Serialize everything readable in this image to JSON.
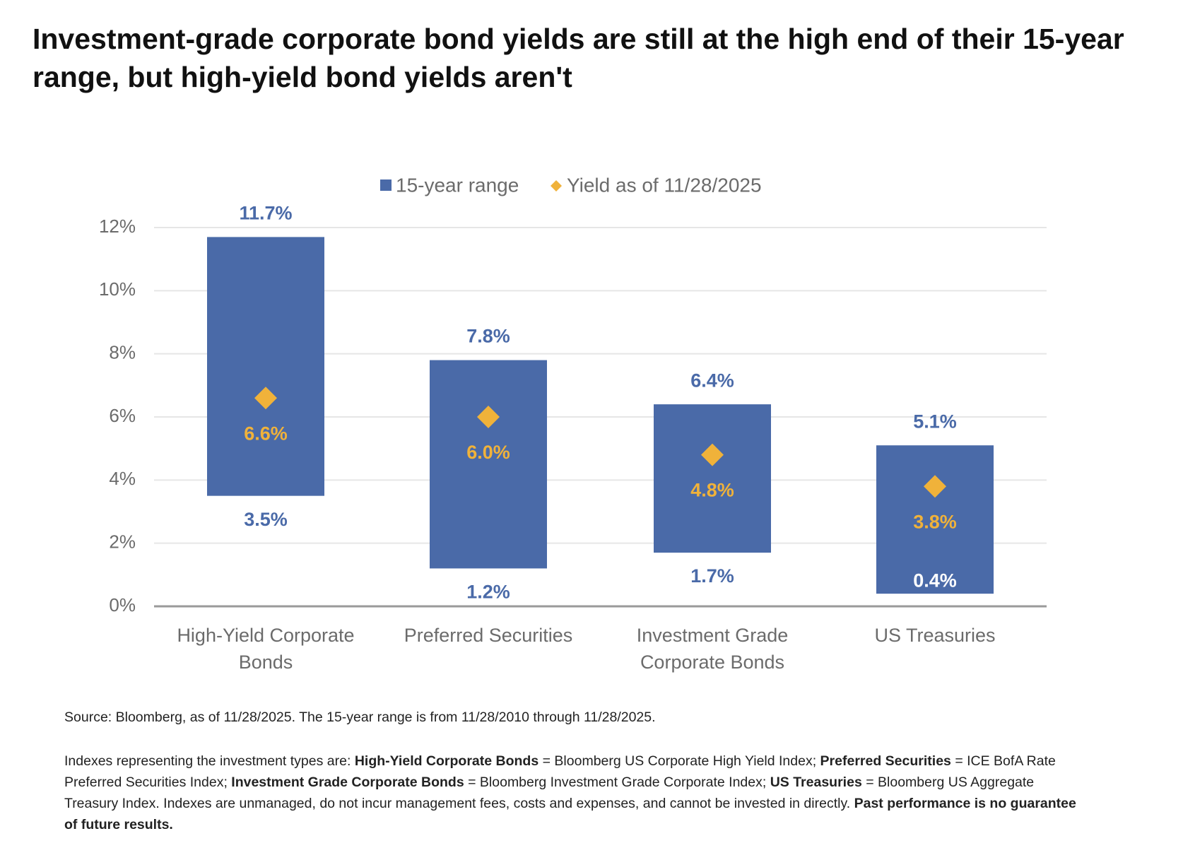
{
  "chart_data": {
    "type": "range",
    "title": "Investment-grade corporate bond yields are still at the high end of their 15-year range, but high-yield bond yields aren't",
    "categories": [
      "High-Yield Corporate Bonds",
      "Preferred Securities",
      "Investment Grade Corporate Bonds",
      "US Treasuries"
    ],
    "series": [
      {
        "name": "15-year range",
        "color": "#4a6aa8",
        "low": [
          3.5,
          1.2,
          1.7,
          0.4
        ],
        "high": [
          11.7,
          7.8,
          6.4,
          5.1
        ],
        "low_labels": [
          "3.5%",
          "1.2%",
          "1.7%",
          "0.4%"
        ],
        "high_labels": [
          "11.7%",
          "7.8%",
          "6.4%",
          "5.1%"
        ]
      },
      {
        "name": "Yield as of 11/28/2025",
        "color": "#f0b23a",
        "values": [
          6.6,
          6.0,
          4.8,
          3.8
        ],
        "value_labels": [
          "6.6%",
          "6.0%",
          "4.8%",
          "3.8%"
        ]
      }
    ],
    "ylim": [
      0,
      12
    ],
    "yticks": [
      {
        "value": 0,
        "label": "0%"
      },
      {
        "value": 2,
        "label": "2%"
      },
      {
        "value": 4,
        "label": "4%"
      },
      {
        "value": 6,
        "label": "6%"
      },
      {
        "value": 8,
        "label": "8%"
      },
      {
        "value": 10,
        "label": "10%"
      },
      {
        "value": 12,
        "label": "12%"
      }
    ],
    "grid": true
  },
  "notes": {
    "source": "Source: Bloomberg, as of 11/28/2025. The 15-year range is from 11/28/2010 through 11/28/2025.",
    "paragraph": [
      {
        "text": "Indexes representing the investment types are: ",
        "bold": false
      },
      {
        "text": "High-Yield Corporate Bonds",
        "bold": true
      },
      {
        "text": " = Bloomberg US Corporate High Yield Index; ",
        "bold": false
      },
      {
        "text": "Preferred Securities",
        "bold": true
      },
      {
        "text": " = ICE BofA Rate Preferred Securities Index; ",
        "bold": false
      },
      {
        "text": "Investment Grade Corporate Bonds",
        "bold": true
      },
      {
        "text": " = Bloomberg Investment Grade Corporate Index; ",
        "bold": false
      },
      {
        "text": "US Treasuries",
        "bold": true
      },
      {
        "text": " = Bloomberg US Aggregate Treasury Index. Indexes are unmanaged, do not incur management fees, costs and expenses, and cannot be invested in directly. ",
        "bold": false
      },
      {
        "text": "Past performance is no guarantee of future results.",
        "bold": true
      }
    ]
  }
}
